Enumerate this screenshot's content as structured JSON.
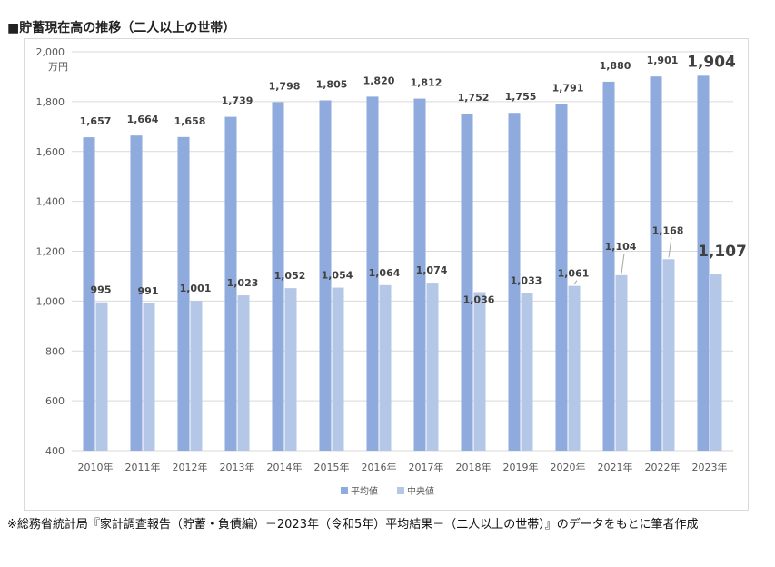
{
  "header": {
    "title": "■貯蓄現在高の推移（二人以上の世帯）"
  },
  "footnote": "※総務省統計局『家計調査報告（貯蓄・負債編）－2023年（令和5年）平均結果－（二人以上の世帯）』のデータをもとに筆者作成",
  "colors": {
    "average": "#8FAADC",
    "median": "#B4C7E7",
    "grid": "#d9d9d9",
    "axis_text": "#595959",
    "label_text": "#404040"
  },
  "chart_data": {
    "type": "bar",
    "title": "",
    "xlabel": "",
    "ylabel": "",
    "yunit": "万円",
    "ylim": [
      400,
      2000
    ],
    "yticks": [
      400,
      600,
      800,
      1000,
      1200,
      1400,
      1600,
      1800,
      2000
    ],
    "ytick_labels": [
      "400",
      "600",
      "800",
      "1,000",
      "1,200",
      "1,400",
      "1,600",
      "1,800",
      "2,000"
    ],
    "grid": true,
    "legend": "bottom",
    "categories": [
      "2010年",
      "2011年",
      "2012年",
      "2013年",
      "2014年",
      "2015年",
      "2016年",
      "2017年",
      "2018年",
      "2019年",
      "2020年",
      "2021年",
      "2022年",
      "2023年"
    ],
    "series": [
      {
        "name": "平均値",
        "values": [
          1657,
          1664,
          1658,
          1739,
          1798,
          1805,
          1820,
          1812,
          1752,
          1755,
          1791,
          1880,
          1901,
          1904
        ],
        "labels": [
          "1,657",
          "1,664",
          "1,658",
          "1,739",
          "1,798",
          "1,805",
          "1,820",
          "1,812",
          "1,752",
          "1,755",
          "1,791",
          "1,880",
          "1,901",
          "1,904"
        ]
      },
      {
        "name": "中央値",
        "values": [
          995,
          991,
          1001,
          1023,
          1052,
          1054,
          1064,
          1074,
          1036,
          1033,
          1061,
          1104,
          1168,
          1107
        ],
        "labels": [
          "995",
          "991",
          "1,001",
          "1,023",
          "1,052",
          "1,054",
          "1,064",
          "1,074",
          "1,036",
          "1,033",
          "1,061",
          "1,104",
          "1,168",
          "1,107"
        ]
      }
    ]
  }
}
